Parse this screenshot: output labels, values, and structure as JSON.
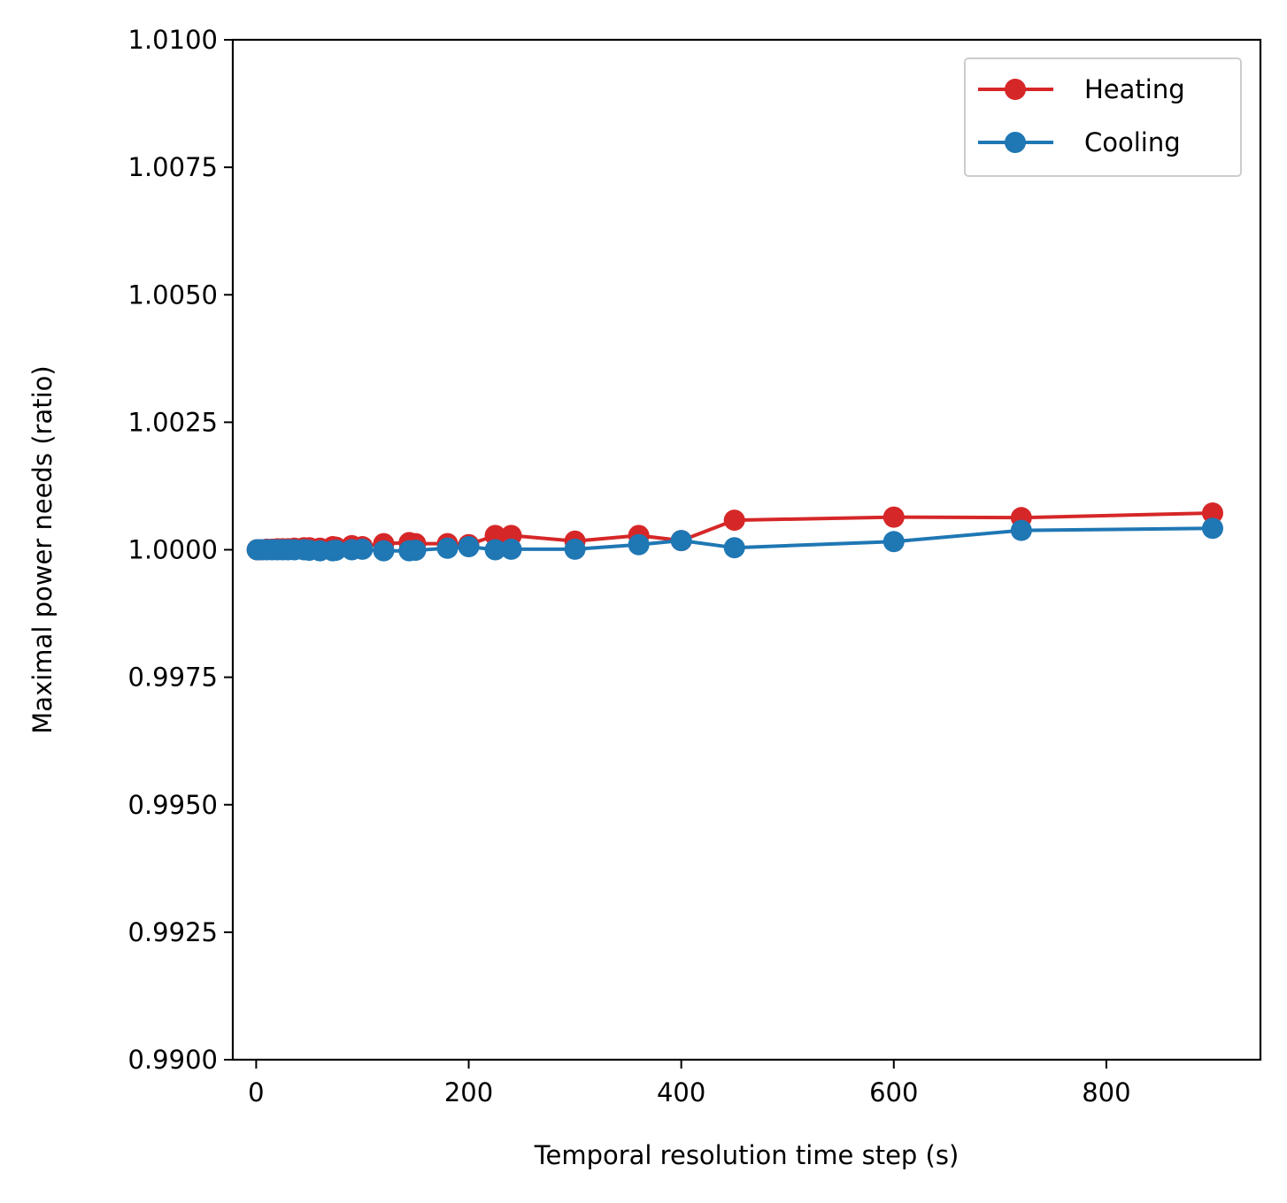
{
  "chart_data": {
    "type": "line",
    "title": "",
    "xlabel": "Temporal resolution time step (s)",
    "ylabel": "Maximal power needs (ratio)",
    "xlim": [
      -22,
      945
    ],
    "ylim": [
      0.99,
      1.01
    ],
    "x_ticks": [
      0,
      200,
      400,
      600,
      800
    ],
    "x_tick_labels": [
      "0",
      "200",
      "400",
      "600",
      "800"
    ],
    "y_ticks": [
      0.99,
      0.9925,
      0.995,
      0.9975,
      1.0,
      1.0025,
      1.005,
      1.0075,
      1.01
    ],
    "y_tick_labels": [
      "0.9900",
      "0.9925",
      "0.9950",
      "0.9975",
      "1.0000",
      "1.0025",
      "1.0050",
      "1.0075",
      "1.0100"
    ],
    "grid": false,
    "legend_position": "upper right",
    "series": [
      {
        "name": "Heating",
        "color": "#d62728",
        "marker": "circle",
        "x": [
          1,
          5,
          10,
          15,
          20,
          25,
          30,
          36,
          45,
          50,
          60,
          72,
          75,
          90,
          100,
          120,
          144,
          150,
          180,
          200,
          225,
          240,
          300,
          360,
          400,
          450,
          600,
          720,
          900
        ],
        "y": [
          1.0,
          1.0,
          1.00001,
          1.00001,
          1.00002,
          1.00002,
          1.00002,
          1.00003,
          1.00004,
          1.00004,
          1.00003,
          1.00006,
          1.00005,
          1.00008,
          1.00006,
          1.00012,
          1.00014,
          1.00012,
          1.00012,
          1.0001,
          1.00028,
          1.00028,
          1.00017,
          1.00028,
          1.00018,
          1.00058,
          1.00064,
          1.00063,
          1.00072
        ]
      },
      {
        "name": "Cooling",
        "color": "#1f77b4",
        "marker": "circle",
        "x": [
          1,
          5,
          10,
          15,
          20,
          25,
          30,
          36,
          45,
          50,
          60,
          72,
          75,
          90,
          100,
          120,
          144,
          150,
          180,
          200,
          225,
          240,
          300,
          360,
          400,
          450,
          600,
          720,
          900
        ],
        "y": [
          1.0,
          1.0,
          1.0,
          1.0,
          1.0,
          1.0,
          1.0,
          1.0,
          1.0,
          0.99999,
          0.99998,
          0.99998,
          0.99999,
          1.0,
          1.00001,
          0.99998,
          0.99998,
          0.99999,
          1.00003,
          1.00006,
          1.0,
          1.00001,
          1.00001,
          1.0001,
          1.00018,
          1.00004,
          1.00016,
          1.00038,
          1.00042
        ]
      }
    ]
  }
}
